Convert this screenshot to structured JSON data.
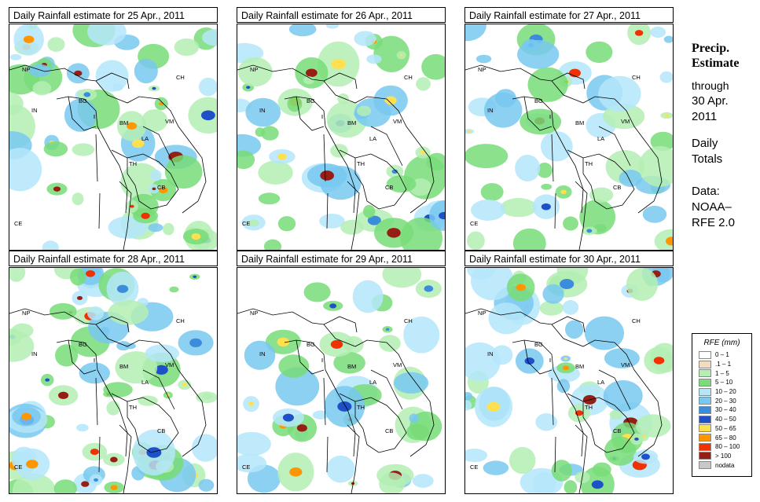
{
  "panels": [
    {
      "title": "Daily Rainfall estimate for  25 Apr., 2011",
      "intensity": 0.85,
      "seed": 3
    },
    {
      "title": "Daily Rainfall estimate for  26 Apr., 2011",
      "intensity": 0.8,
      "seed": 7
    },
    {
      "title": "Daily Rainfall estimate for  27 Apr., 2011",
      "intensity": 0.7,
      "seed": 11
    },
    {
      "title": "Daily Rainfall estimate for  28 Apr., 2011",
      "intensity": 1.0,
      "seed": 17
    },
    {
      "title": "Daily Rainfall estimate for  29 Apr., 2011",
      "intensity": 0.6,
      "seed": 23
    },
    {
      "title": "Daily Rainfall estimate for  30 Apr., 2011",
      "intensity": 0.9,
      "seed": 29
    }
  ],
  "map_labels": [
    "NP",
    "CH",
    "IN",
    "BG",
    "BM",
    "VM",
    "LA",
    "TH",
    "CB",
    "CE"
  ],
  "side": {
    "title_line1": "Precip.",
    "title_line2": "Estimate",
    "through": "through",
    "date_line1": "30 Apr.",
    "date_line2": "2011",
    "daily_line1": "Daily",
    "daily_line2": "Totals",
    "data_line1": "Data:",
    "data_line2": "NOAA–",
    "data_line3": "RFE 2.0"
  },
  "legend": {
    "title": "RFE (mm)",
    "items": [
      {
        "label": "0 – 1",
        "color": "#ffffff"
      },
      {
        "label": ".1 – 1",
        "color": "#f0dcc0"
      },
      {
        "label": "1 – 5",
        "color": "#b4eeb4"
      },
      {
        "label": "5 – 10",
        "color": "#78dc78"
      },
      {
        "label": "10 – 20",
        "color": "#b4e6fa"
      },
      {
        "label": "20 – 30",
        "color": "#78c8f0"
      },
      {
        "label": "30 – 40",
        "color": "#3c8cdc"
      },
      {
        "label": "40 – 50",
        "color": "#1e50c8"
      },
      {
        "label": "50 – 65",
        "color": "#ffe150"
      },
      {
        "label": "65 – 80",
        "color": "#ff9600"
      },
      {
        "label": "80 – 100",
        "color": "#f03200"
      },
      {
        "label": "> 100",
        "color": "#961e14"
      },
      {
        "label": "nodata",
        "color": "#c8c8c8"
      }
    ]
  }
}
